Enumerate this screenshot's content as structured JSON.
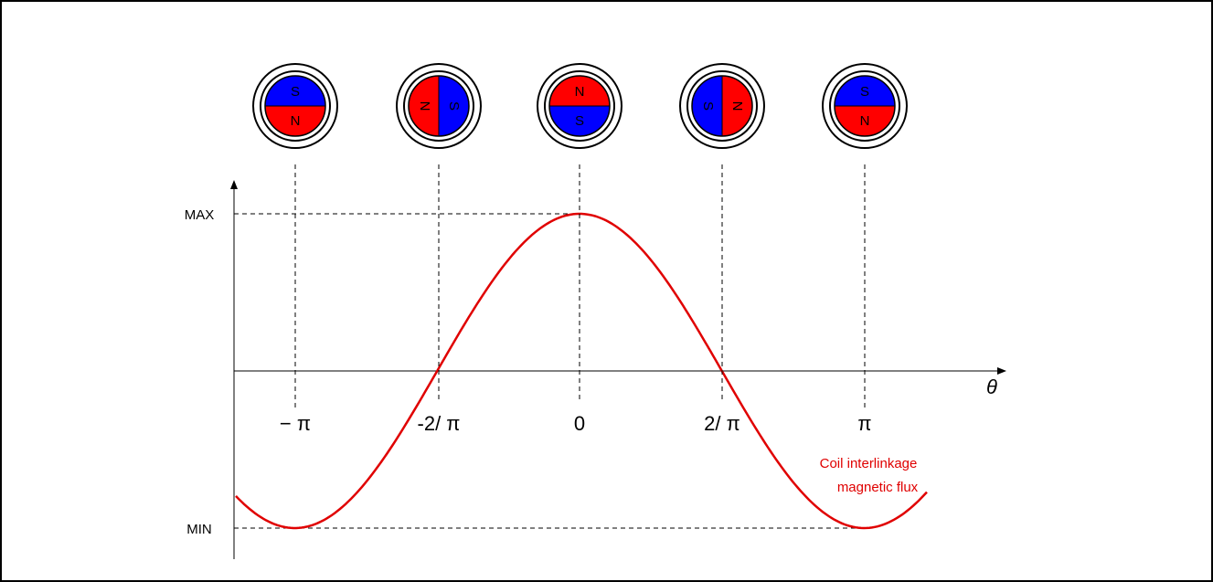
{
  "axes": {
    "y_labels": [
      "MAX",
      "MIN"
    ],
    "x_labels": [
      "− π",
      "-2/ π",
      "0",
      "2/ π",
      "π"
    ],
    "x_axis_label": "θ"
  },
  "curve_label": [
    "Coil interlinkage",
    "magnetic flux"
  ],
  "magnets": [
    {
      "first": "S",
      "second": "N"
    },
    {
      "first": "N",
      "second": "S"
    },
    {
      "first": "N",
      "second": "S"
    },
    {
      "first": "S",
      "second": "N"
    },
    {
      "first": "S",
      "second": "N"
    }
  ]
}
